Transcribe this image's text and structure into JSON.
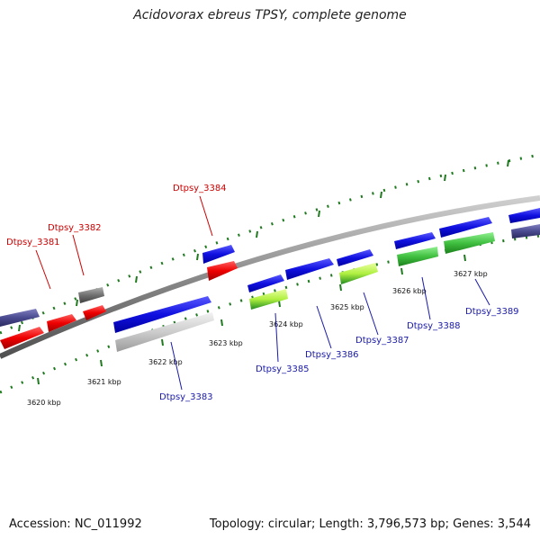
{
  "title": "Acidovorax ebreus TPSY, complete genome",
  "footer": {
    "accession": "Accession: NC_011992",
    "summary": "Topology: circular; Length: 3,796,573 bp; Genes: 3,544"
  },
  "colors": {
    "backbone": "#8a8a8a",
    "ticks": "#1f7a1f",
    "label_red": "#cc0000",
    "label_blue": "#1a1aa8"
  },
  "ticks": [
    "3620 kbp",
    "3621 kbp",
    "3622 kbp",
    "3623 kbp",
    "3624 kbp",
    "3625 kbp",
    "3626 kbp",
    "3627 kbp"
  ],
  "genes": [
    {
      "name": "Dtpsy_3381",
      "color_name": "red"
    },
    {
      "name": "Dtpsy_3382",
      "color_name": "red"
    },
    {
      "name": "Dtpsy_3383",
      "color_name": "blue"
    },
    {
      "name": "Dtpsy_3384",
      "color_name": "red"
    },
    {
      "name": "Dtpsy_3385",
      "color_name": "blue"
    },
    {
      "name": "Dtpsy_3386",
      "color_name": "blue"
    },
    {
      "name": "Dtpsy_3387",
      "color_name": "blue"
    },
    {
      "name": "Dtpsy_3388",
      "color_name": "blue"
    },
    {
      "name": "Dtpsy_3389",
      "color_name": "blue"
    }
  ]
}
